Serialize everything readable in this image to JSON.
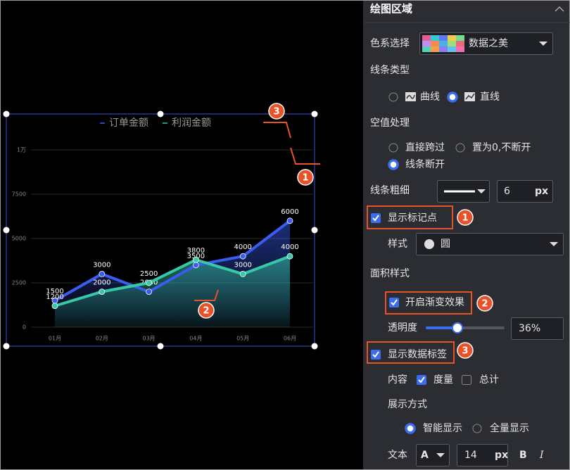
{
  "chart_data": {
    "type": "line",
    "categories": [
      "01月",
      "02月",
      "03月",
      "04月",
      "05月",
      "06月"
    ],
    "series": [
      {
        "name": "订单金额",
        "color": "#3a5cf0",
        "values": [
          1500,
          3000,
          2000,
          3500,
          4000,
          6000
        ]
      },
      {
        "name": "利润金额",
        "color": "#36c9a8",
        "values": [
          1200,
          2000,
          2500,
          3800,
          3000,
          4000
        ]
      }
    ],
    "ylim": [
      0,
      10000
    ],
    "yticks": [
      0,
      2500,
      5000,
      7500,
      {
        "value": 10000,
        "label": "1万"
      }
    ],
    "grid": true,
    "area": true,
    "annotations": [
      "3",
      "1",
      "2"
    ]
  },
  "panel": {
    "title": "绘图区域",
    "color_scheme": {
      "label": "色系选择",
      "value": "数据之美"
    },
    "line_type": {
      "label": "线条类型",
      "options": [
        "曲线",
        "直线"
      ]
    },
    "null_handling": {
      "label": "空值处理",
      "options": [
        "直接跨过",
        "置为0,不断开",
        "线条断开"
      ]
    },
    "line_width": {
      "label": "线条粗细",
      "value": 6,
      "unit": "px"
    },
    "show_markers": {
      "label": "显示标记点",
      "badge": "1"
    },
    "marker_style": {
      "label": "样式",
      "value": "圆"
    },
    "area_style": {
      "label": "面积样式"
    },
    "gradient": {
      "label": "开启渐变效果",
      "badge": "2"
    },
    "opacity": {
      "label": "透明度",
      "value": "36%"
    },
    "data_labels": {
      "label": "显示数据标签",
      "badge": "3"
    },
    "content": {
      "label": "内容",
      "options": [
        "度量",
        "总计"
      ]
    },
    "display_mode": {
      "label": "展示方式",
      "options": [
        "智能显示",
        "全量显示"
      ]
    },
    "text": {
      "label": "文本",
      "font": "A",
      "size": 14,
      "unit": "px",
      "bold": "B",
      "italic": "I"
    }
  }
}
